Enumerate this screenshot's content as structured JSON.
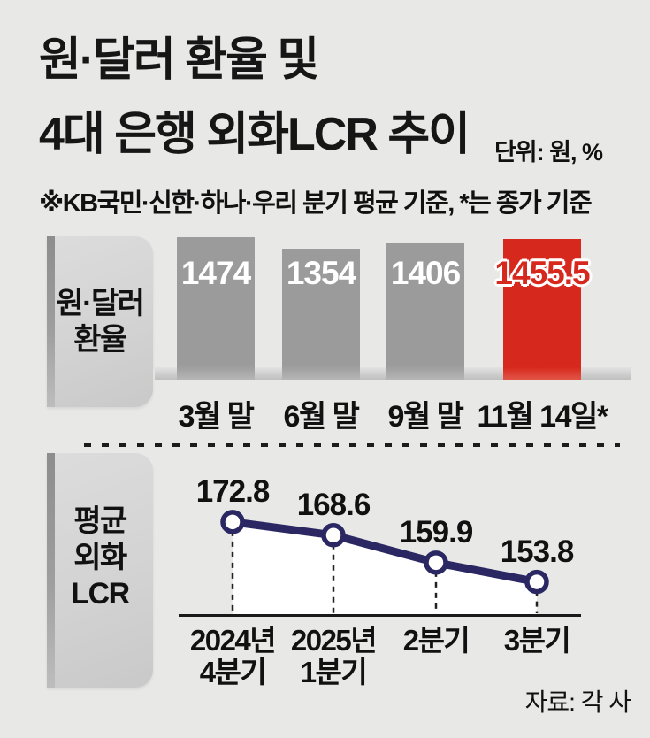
{
  "header": {
    "title_line1": "원·달러 환율 및",
    "title_line2": "4대 은행 외화LCR 추이",
    "unit_label": "단위: 원, %",
    "note": "※KB국민·신한·하나·우리 분기 평균 기준, *는 종가 기준",
    "source": "자료: 각 사"
  },
  "colors": {
    "background": "#e8e8e7",
    "bar_gray": "#9b9b9b",
    "highlight_red": "#d7281d",
    "line_navy": "#2a2763",
    "panel_gray": "#d5d5d5",
    "text_black": "#111111"
  },
  "chart_data": [
    {
      "type": "bar",
      "section_label": "원·달러 환율",
      "section_label_lines": [
        "원·달러",
        "환율"
      ],
      "categories": [
        "3월 말",
        "6월 말",
        "9월 말",
        "11월 14일*"
      ],
      "values": [
        1474,
        1354,
        1406,
        1455.5
      ],
      "highlight_index": 3,
      "unit": "원",
      "note": "truncated axis; value labels printed inside bar tops"
    },
    {
      "type": "line",
      "section_label": "평균 외화 LCR",
      "section_label_lines": [
        "평균",
        "외화",
        "LCR"
      ],
      "categories": [
        "2024년\n4분기",
        "2025년\n1분기",
        "2분기",
        "3분기"
      ],
      "values": [
        172.8,
        168.6,
        159.9,
        153.8
      ],
      "unit": "%",
      "note": "white area fill under line; dashed droplines to axis"
    }
  ]
}
